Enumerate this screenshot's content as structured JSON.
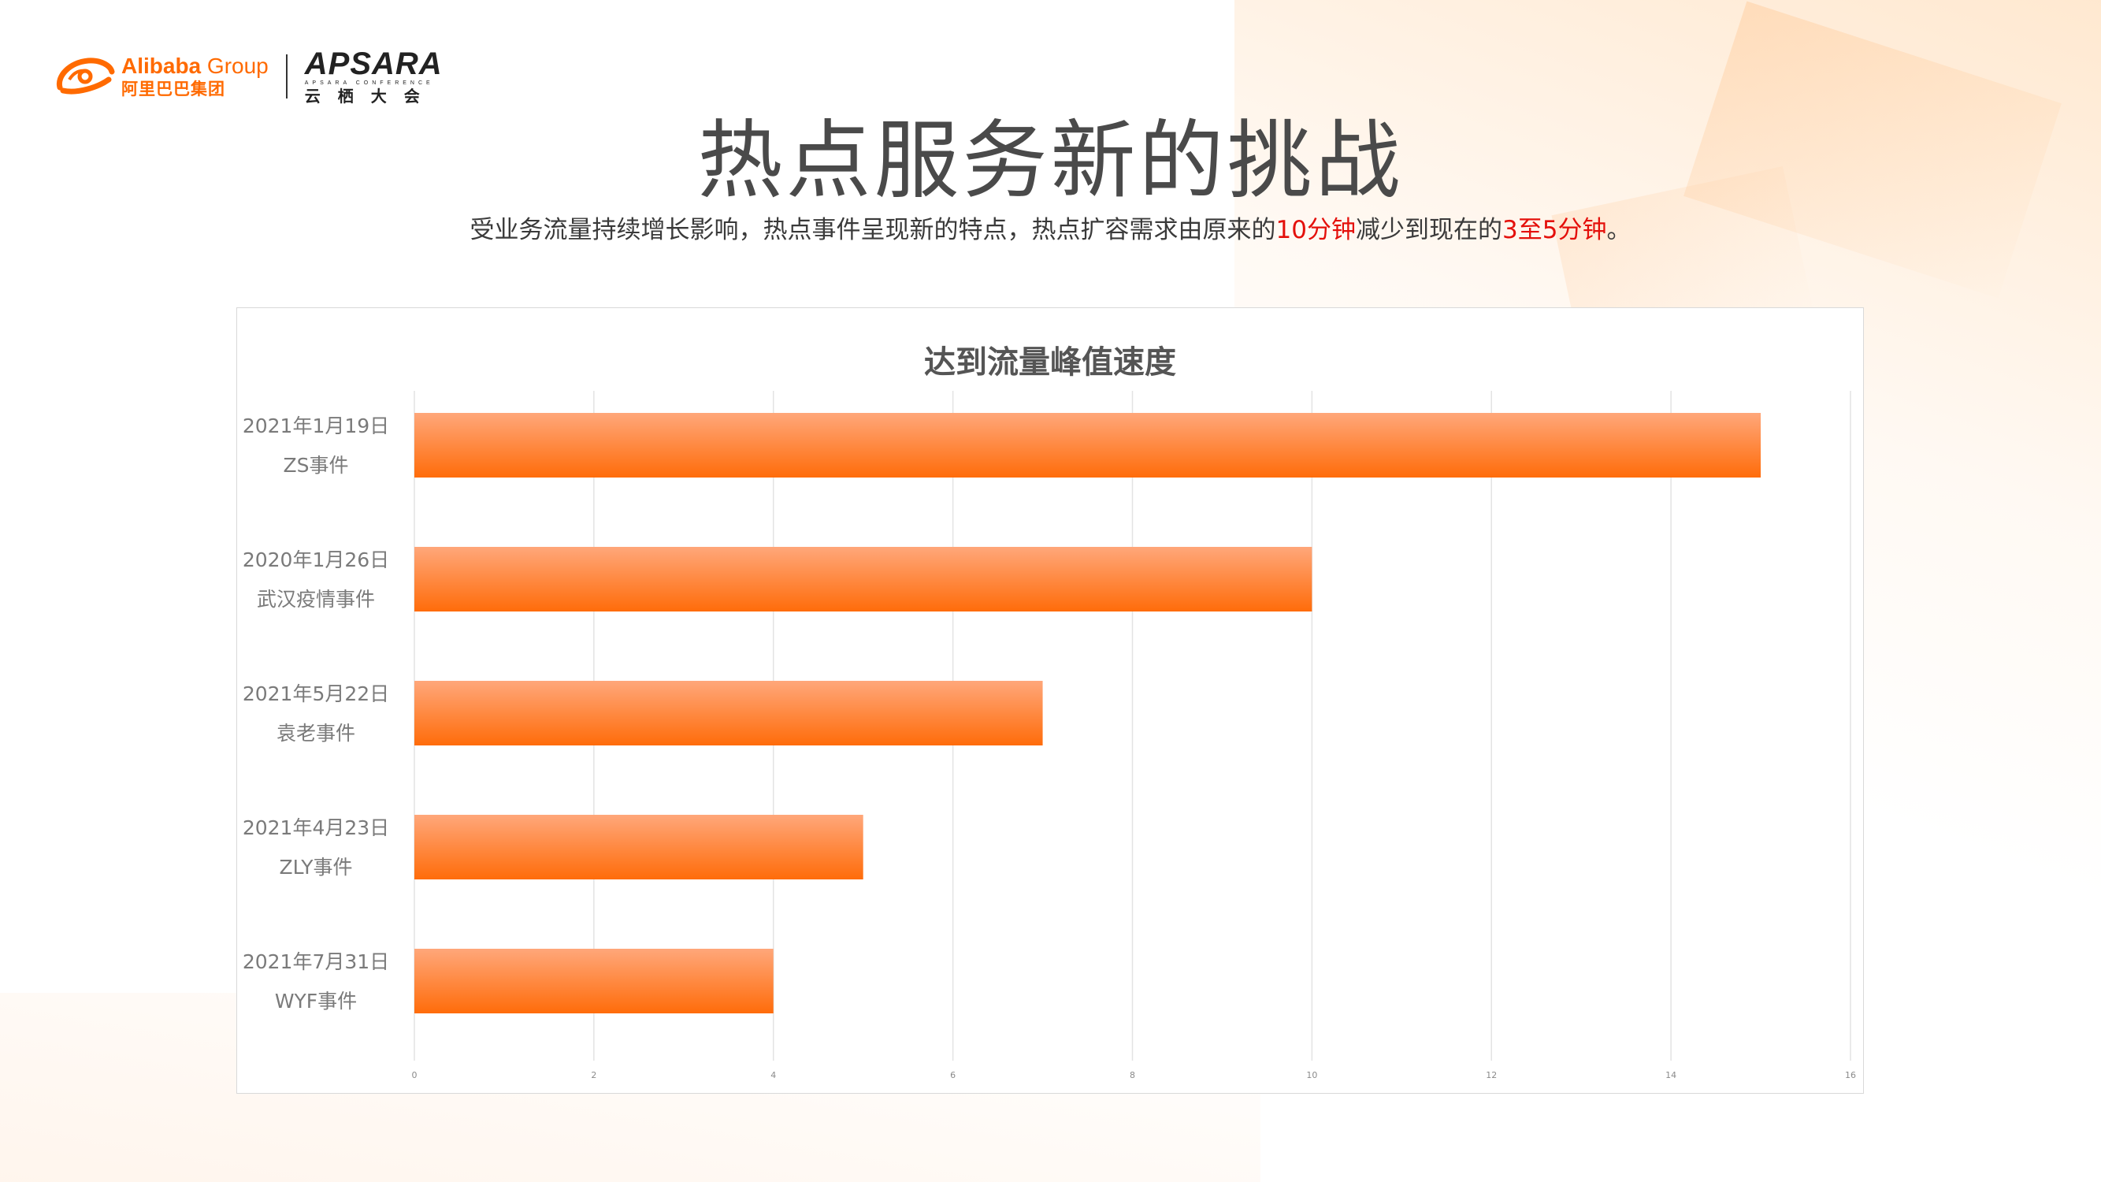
{
  "header": {
    "alibaba_en_bold": "Alibaba",
    "alibaba_en_light": " Group",
    "alibaba_cn": "阿里巴巴集团",
    "apsara_en": "APSARA",
    "apsara_sub": "APSARA CONFERENCE",
    "apsara_cn": "云栖大会"
  },
  "slide": {
    "title": "热点服务新的挑战",
    "subtitle_part1": "受业务流量持续增长影响，热点事件呈现新的特点，热点扩容需求由原来的",
    "subtitle_hl1": "10分钟",
    "subtitle_part2": "减少到现在的",
    "subtitle_hl2": "3至5分钟",
    "subtitle_part3": "。"
  },
  "colors": {
    "accent": "#ff6a00",
    "highlight": "#e4100b",
    "bar_top": "#ffa77a",
    "bar_bottom": "#ff6c0a"
  },
  "chart_data": {
    "type": "bar",
    "orientation": "horizontal",
    "title": "达到流量峰值速度",
    "categories": [
      [
        "2021年1月19日",
        "ZS事件"
      ],
      [
        "2020年1月26日",
        "武汉疫情事件"
      ],
      [
        "2021年5月22日",
        "袁老事件"
      ],
      [
        "2021年4月23日",
        "ZLY事件"
      ],
      [
        "2021年7月31日",
        "WYF事件"
      ]
    ],
    "values": [
      15,
      10,
      7,
      5,
      4
    ],
    "xlim": [
      0,
      16
    ],
    "xticks": [
      0,
      2,
      4,
      6,
      8,
      10,
      12,
      14,
      16
    ],
    "grid": true,
    "legend": "none"
  }
}
